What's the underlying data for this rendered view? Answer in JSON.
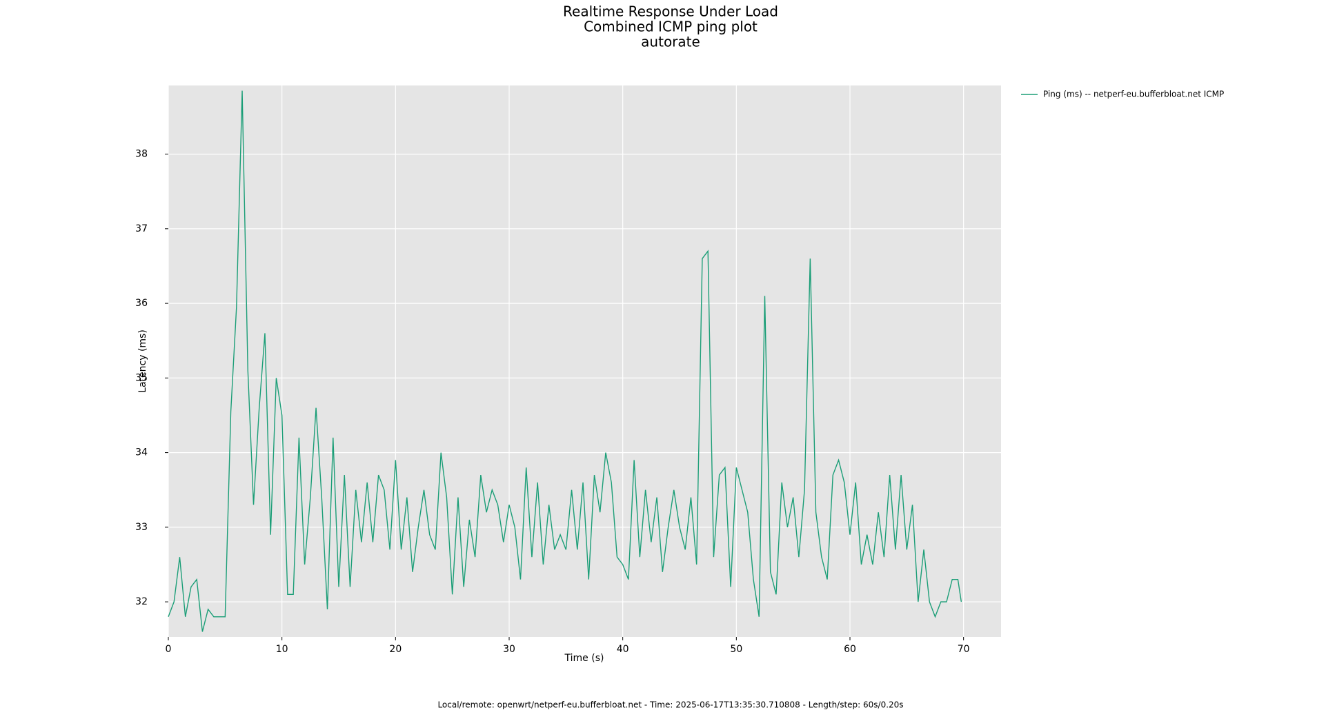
{
  "chart_data": {
    "type": "line",
    "title": "Realtime Response Under Load",
    "subtitle": [
      "Combined ICMP ping plot",
      "autorate"
    ],
    "x_label": "Time (s)",
    "y_label": "Latency (ms)",
    "footer": "Local/remote: openwrt/netperf-eu.bufferbloat.net - Time: 2025-06-17T13:35:30.710808 - Length/step: 60s/0.20s",
    "x": [
      0,
      0.5,
      1,
      1.5,
      2,
      2.5,
      3,
      3.5,
      4,
      4.5,
      5,
      5.5,
      6,
      6.5,
      7,
      7.5,
      8,
      8.5,
      9,
      9.5,
      10,
      10.5,
      11,
      11.5,
      12,
      12.5,
      13,
      13.5,
      14,
      14.5,
      15,
      15.5,
      16,
      16.5,
      17,
      17.5,
      18,
      18.5,
      19,
      19.5,
      20,
      20.5,
      21,
      21.5,
      22,
      22.5,
      23,
      23.5,
      24,
      24.5,
      25,
      25.5,
      26,
      26.5,
      27,
      27.5,
      28,
      28.5,
      29,
      29.5,
      30,
      30.5,
      31,
      31.5,
      32,
      32.5,
      33,
      33.5,
      34,
      34.5,
      35,
      35.5,
      36,
      36.5,
      37,
      37.5,
      38,
      38.5,
      39,
      39.5,
      40,
      40.5,
      41,
      41.5,
      42,
      42.5,
      43,
      43.5,
      44,
      44.5,
      45,
      45.5,
      46,
      46.5,
      47,
      47.5,
      48,
      48.5,
      49,
      49.5,
      50,
      50.5,
      51,
      51.5,
      52,
      52.5,
      53,
      53.5,
      54,
      54.5,
      55,
      55.5,
      56,
      56.5,
      57,
      57.5,
      58,
      58.5,
      59,
      59.5,
      60,
      60.5,
      61,
      61.5,
      62,
      62.5,
      63,
      63.5,
      64,
      64.5,
      65,
      65.5,
      66,
      66.5,
      67,
      67.5,
      68,
      68.5,
      69,
      69.5,
      69.8
    ],
    "series": [
      {
        "name": "Ping (ms) -- netperf-eu.bufferbloat.net ICMP",
        "color": "#1b9e77",
        "values": [
          31.8,
          32.0,
          32.6,
          31.8,
          32.2,
          32.3,
          31.6,
          31.9,
          31.8,
          31.8,
          31.8,
          34.55,
          35.95,
          38.85,
          35.1,
          33.3,
          34.6,
          35.6,
          32.9,
          35.0,
          34.5,
          32.1,
          32.1,
          34.2,
          32.5,
          33.4,
          34.6,
          33.4,
          31.9,
          34.2,
          32.2,
          33.7,
          32.2,
          33.5,
          32.8,
          33.6,
          32.8,
          33.7,
          33.5,
          32.7,
          33.9,
          32.7,
          33.4,
          32.4,
          33.0,
          33.5,
          32.9,
          32.7,
          34.0,
          33.4,
          32.1,
          33.4,
          32.2,
          33.1,
          32.6,
          33.7,
          33.2,
          33.5,
          33.3,
          32.8,
          33.3,
          33.0,
          32.3,
          33.8,
          32.6,
          33.6,
          32.5,
          33.3,
          32.7,
          32.9,
          32.7,
          33.5,
          32.7,
          33.6,
          32.3,
          33.7,
          33.2,
          34.0,
          33.6,
          32.6,
          32.5,
          32.3,
          33.9,
          32.6,
          33.5,
          32.8,
          33.4,
          32.4,
          33.0,
          33.5,
          33.0,
          32.7,
          33.4,
          32.5,
          36.6,
          36.7,
          32.6,
          33.7,
          33.8,
          32.2,
          33.8,
          33.5,
          33.2,
          32.3,
          31.8,
          36.1,
          32.4,
          32.1,
          33.6,
          33.0,
          33.4,
          32.6,
          33.5,
          36.6,
          33.2,
          32.6,
          32.3,
          33.7,
          33.9,
          33.6,
          32.9,
          33.6,
          32.5,
          32.9,
          32.5,
          33.2,
          32.6,
          33.7,
          32.7,
          33.7,
          32.7,
          33.3,
          32.0,
          32.7,
          32.0,
          31.8,
          32.0,
          32.0,
          32.3,
          32.3,
          32.0
        ]
      }
    ],
    "xlim": [
      0,
      73.3
    ],
    "ylim": [
      31.53,
      38.92
    ],
    "xticks": [
      0,
      10,
      20,
      30,
      40,
      50,
      60,
      70
    ],
    "yticks": [
      32,
      33,
      34,
      35,
      36,
      37,
      38
    ],
    "grid": true,
    "legend": "outside-right"
  }
}
